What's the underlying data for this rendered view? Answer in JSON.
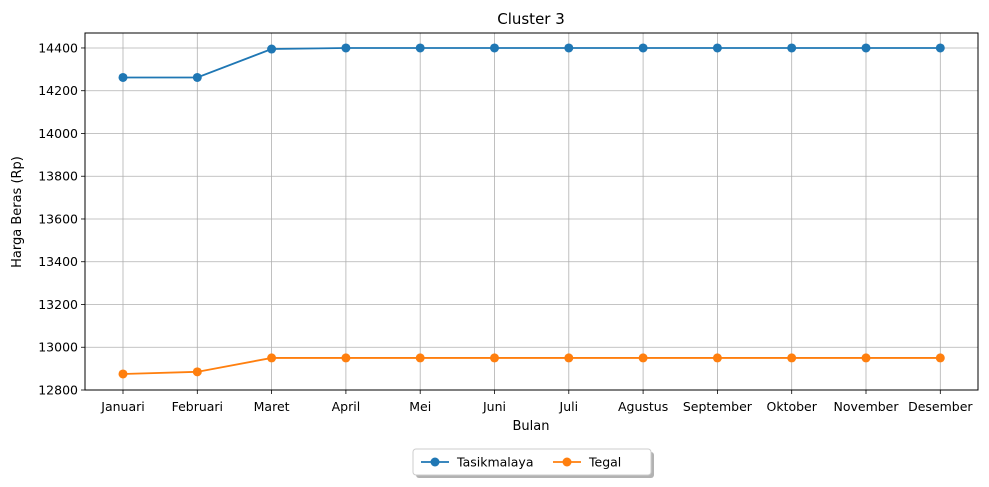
{
  "chart_data": {
    "type": "line",
    "title": "Cluster 3",
    "xlabel": "Bulan",
    "ylabel": "Harga Beras (Rp)",
    "categories": [
      "Januari",
      "Februari",
      "Maret",
      "April",
      "Mei",
      "Juni",
      "Juli",
      "Agustus",
      "September",
      "Oktober",
      "November",
      "Desember"
    ],
    "ylim": [
      12800,
      14470
    ],
    "yticks": [
      12800,
      13000,
      13200,
      13400,
      13600,
      13800,
      14000,
      14200,
      14400
    ],
    "grid": true,
    "legend_position": "bottom-center",
    "series": [
      {
        "name": "Tasikmalaya",
        "color": "#1f77b4",
        "values": [
          14262,
          14262,
          14395,
          14400,
          14400,
          14400,
          14400,
          14400,
          14400,
          14400,
          14400,
          14400
        ]
      },
      {
        "name": "Tegal",
        "color": "#ff7f0e",
        "values": [
          12875,
          12885,
          12950,
          12950,
          12950,
          12950,
          12950,
          12950,
          12950,
          12950,
          12950,
          12950
        ]
      }
    ]
  }
}
